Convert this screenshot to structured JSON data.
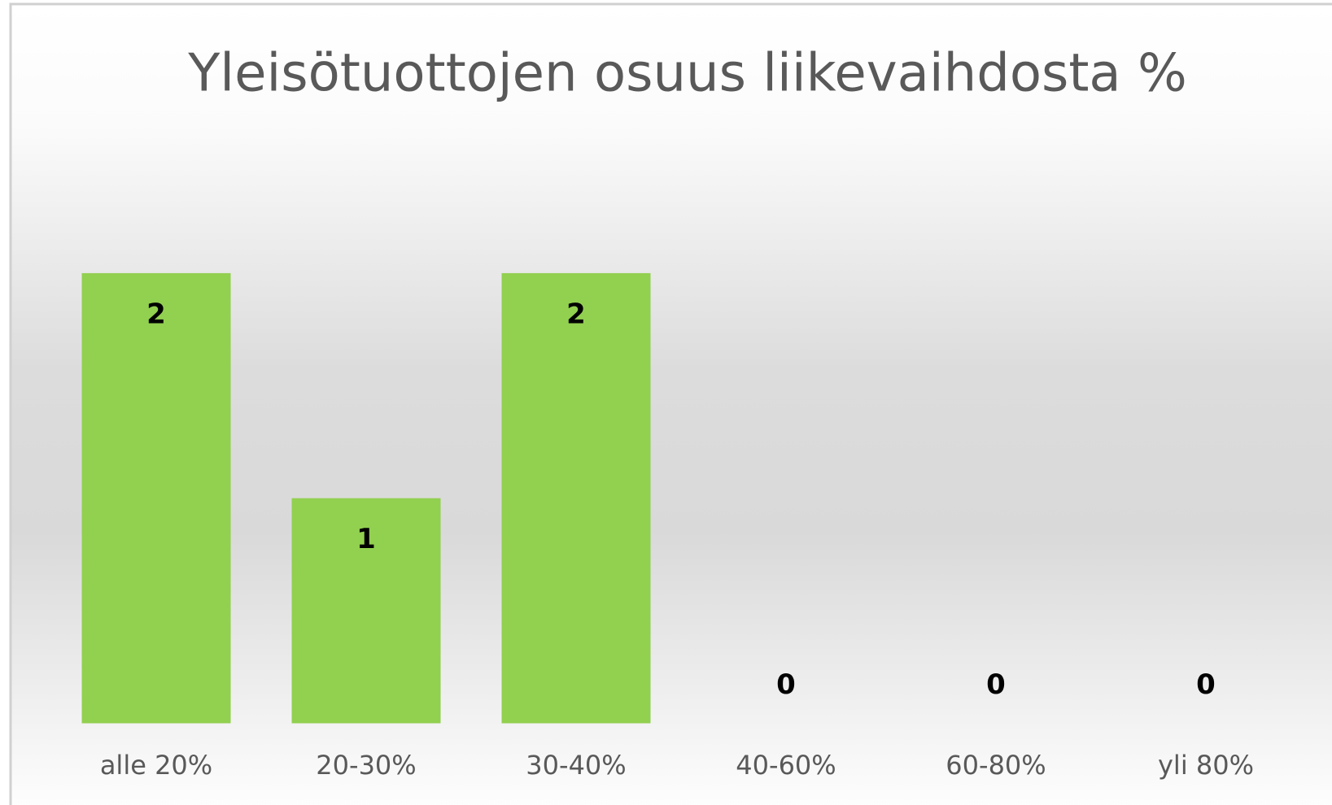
{
  "chart_data": {
    "type": "bar",
    "title": "Yleisötuottojen osuus liikevaihdosta %",
    "categories": [
      "alle 20%",
      "20-30%",
      "30-40%",
      "40-60%",
      "60-80%",
      "yli 80%"
    ],
    "values": [
      2,
      1,
      2,
      0,
      0,
      0
    ],
    "color": "#92d050",
    "ylim": [
      0,
      2.5
    ]
  }
}
